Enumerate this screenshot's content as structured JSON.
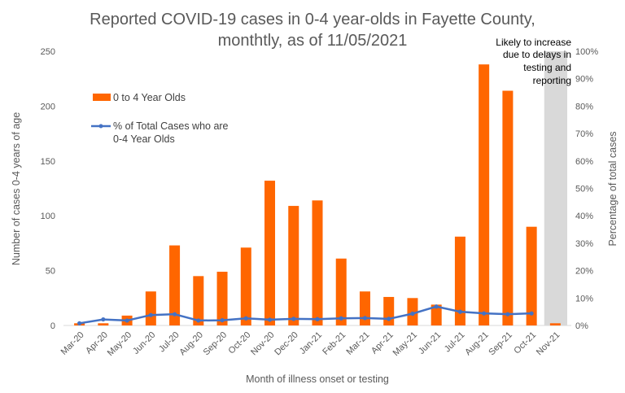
{
  "chart_data": {
    "type": "bar",
    "title_lines": [
      "Reported COVID-19 cases in 0-4 year-olds in Fayette County,",
      "monthtly, as of 11/05/2021"
    ],
    "xlabel": "Month of illness onset or testing",
    "ylabel": "Number of cases 0-4 years of age",
    "y2label": "Percentage of total cases",
    "categories": [
      "Mar-20",
      "Apr-20",
      "May-20",
      "Jun-20",
      "Jul-20",
      "Aug-20",
      "Sep-20",
      "Oct-20",
      "Nov-20",
      "Dec-20",
      "Jan-21",
      "Feb-21",
      "Mar-21",
      "Apr-21",
      "May-21",
      "Jun-21",
      "Jul-21",
      "Aug-21",
      "Sep-21",
      "Oct-21",
      "Nov-21"
    ],
    "ylim": [
      0,
      250
    ],
    "yticks": [
      0,
      50,
      100,
      150,
      200,
      250
    ],
    "y2lim": [
      0,
      1
    ],
    "y2ticks": [
      "0%",
      "10%",
      "20%",
      "30%",
      "40%",
      "50%",
      "60%",
      "70%",
      "80%",
      "90%",
      "100%"
    ],
    "grid": false,
    "legend_position": "upper-left inside plot",
    "series": [
      {
        "name": "0 to 4 Year Olds",
        "type": "bar",
        "axis": "left",
        "color": "#ff6600",
        "values": [
          2,
          2,
          9,
          31,
          73,
          45,
          49,
          71,
          132,
          109,
          114,
          61,
          31,
          26,
          25,
          19,
          81,
          238,
          214,
          90,
          2
        ]
      },
      {
        "name": "% of Total Cases who are 0-4 Year Olds",
        "type": "line",
        "axis": "right",
        "color": "#4472c4",
        "values": [
          0.008,
          0.022,
          0.018,
          0.038,
          0.041,
          0.018,
          0.019,
          0.026,
          0.021,
          0.024,
          0.023,
          0.026,
          0.027,
          0.024,
          0.043,
          0.069,
          0.05,
          0.044,
          0.041,
          0.044,
          null
        ]
      }
    ],
    "annotation": {
      "lines": [
        "Likely to increase",
        "due to delays in",
        "testing and",
        "reporting"
      ],
      "highlighted_category": "Nov-21",
      "shade_color": "#d9d9d9"
    }
  }
}
